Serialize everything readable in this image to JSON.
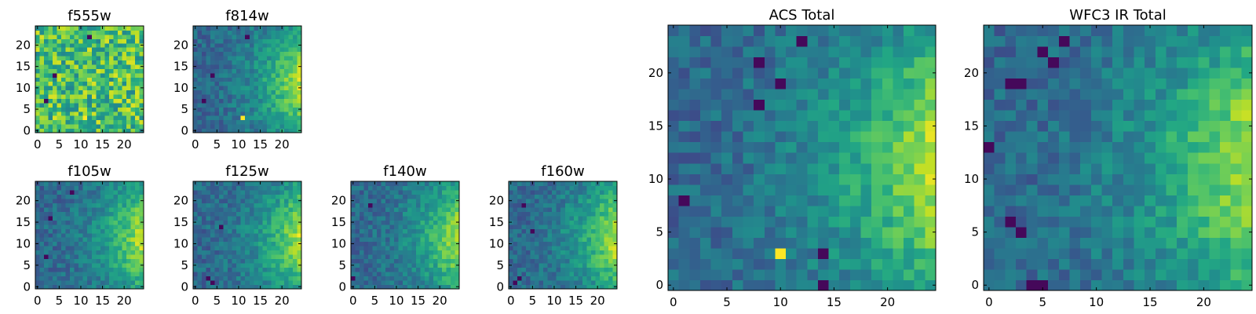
{
  "chart_data": [
    {
      "type": "heatmap",
      "title": "f555w",
      "xlabel": "",
      "ylabel": "",
      "grid_size": [
        25,
        25
      ],
      "xlim": [
        -0.5,
        24.5
      ],
      "ylim": [
        -0.5,
        24.5
      ],
      "xticks": [
        "0",
        "5",
        "10",
        "15",
        "20"
      ],
      "yticks": [
        "0",
        "5",
        "10",
        "15",
        "20"
      ],
      "colormap": "viridis",
      "pattern": "noisy",
      "bright_spot": [
        11,
        3
      ],
      "dark_spots": [
        [
          4,
          13
        ],
        [
          12,
          22
        ],
        [
          2,
          7
        ]
      ]
    },
    {
      "type": "heatmap",
      "title": "f814w",
      "xlabel": "",
      "ylabel": "",
      "grid_size": [
        25,
        25
      ],
      "xlim": [
        -0.5,
        24.5
      ],
      "ylim": [
        -0.5,
        24.5
      ],
      "xticks": [
        "0",
        "5",
        "10",
        "15",
        "20"
      ],
      "yticks": [
        "0",
        "5",
        "10",
        "15",
        "20"
      ],
      "colormap": "viridis",
      "pattern": "gradient",
      "bright_spot": [
        11,
        3
      ],
      "dark_spots": [
        [
          4,
          13
        ],
        [
          12,
          22
        ],
        [
          2,
          7
        ]
      ]
    },
    {
      "type": "heatmap",
      "title": "f105w",
      "xlabel": "",
      "ylabel": "",
      "grid_size": [
        25,
        25
      ],
      "xlim": [
        -0.5,
        24.5
      ],
      "ylim": [
        -0.5,
        24.5
      ],
      "xticks": [
        "0",
        "5",
        "10",
        "15",
        "20"
      ],
      "yticks": [
        "0",
        "5",
        "10",
        "15",
        "20"
      ],
      "colormap": "viridis",
      "pattern": "gradient",
      "dark_spots": [
        [
          8,
          22
        ],
        [
          3,
          16
        ],
        [
          2,
          7
        ]
      ]
    },
    {
      "type": "heatmap",
      "title": "f125w",
      "xlabel": "",
      "ylabel": "",
      "grid_size": [
        25,
        25
      ],
      "xlim": [
        -0.5,
        24.5
      ],
      "ylim": [
        -0.5,
        24.5
      ],
      "xticks": [
        "0",
        "5",
        "10",
        "15",
        "20"
      ],
      "yticks": [
        "0",
        "5",
        "10",
        "15",
        "20"
      ],
      "colormap": "viridis",
      "pattern": "gradient",
      "dark_spots": [
        [
          3,
          2
        ],
        [
          4,
          1
        ],
        [
          6,
          14
        ]
      ]
    },
    {
      "type": "heatmap",
      "title": "f140w",
      "xlabel": "",
      "ylabel": "",
      "grid_size": [
        25,
        25
      ],
      "xlim": [
        -0.5,
        24.5
      ],
      "ylim": [
        -0.5,
        24.5
      ],
      "xticks": [
        "0",
        "5",
        "10",
        "15",
        "20"
      ],
      "yticks": [
        "0",
        "5",
        "10",
        "15",
        "20"
      ],
      "colormap": "viridis",
      "pattern": "gradient",
      "dark_spots": [
        [
          4,
          19
        ],
        [
          0,
          2
        ]
      ]
    },
    {
      "type": "heatmap",
      "title": "f160w",
      "xlabel": "",
      "ylabel": "",
      "grid_size": [
        25,
        25
      ],
      "xlim": [
        -0.5,
        24.5
      ],
      "ylim": [
        -0.5,
        24.5
      ],
      "xticks": [
        "0",
        "5",
        "10",
        "15",
        "20"
      ],
      "yticks": [
        "0",
        "5",
        "10",
        "15",
        "20"
      ],
      "colormap": "viridis",
      "pattern": "gradient",
      "dark_spots": [
        [
          3,
          19
        ],
        [
          2,
          2
        ],
        [
          1,
          1
        ],
        [
          5,
          13
        ]
      ]
    },
    {
      "type": "heatmap",
      "title": "ACS Total",
      "xlabel": "",
      "ylabel": "",
      "grid_size": [
        25,
        25
      ],
      "xlim": [
        -0.5,
        24.5
      ],
      "ylim": [
        -0.5,
        24.5
      ],
      "xticks": [
        "0",
        "5",
        "10",
        "15",
        "20"
      ],
      "yticks": [
        "0",
        "5",
        "10",
        "15",
        "20"
      ],
      "colormap": "viridis",
      "pattern": "gradient",
      "bright_spot": [
        10,
        3
      ],
      "dark_spots": [
        [
          8,
          21
        ],
        [
          12,
          23
        ],
        [
          10,
          19
        ],
        [
          8,
          17
        ],
        [
          1,
          8
        ],
        [
          14,
          3
        ],
        [
          14,
          0
        ]
      ]
    },
    {
      "type": "heatmap",
      "title": "WFC3 IR Total",
      "xlabel": "",
      "ylabel": "",
      "grid_size": [
        25,
        25
      ],
      "xlim": [
        -0.5,
        24.5
      ],
      "ylim": [
        -0.5,
        24.5
      ],
      "xticks": [
        "0",
        "5",
        "10",
        "15",
        "20"
      ],
      "yticks": [
        "0",
        "5",
        "10",
        "15",
        "20"
      ],
      "colormap": "viridis",
      "pattern": "gradient",
      "dark_spots": [
        [
          5,
          22
        ],
        [
          7,
          23
        ],
        [
          2,
          19
        ],
        [
          3,
          19
        ],
        [
          0,
          13
        ],
        [
          2,
          6
        ],
        [
          3,
          5
        ],
        [
          4,
          0
        ],
        [
          5,
          0
        ],
        [
          6,
          21
        ]
      ]
    }
  ]
}
